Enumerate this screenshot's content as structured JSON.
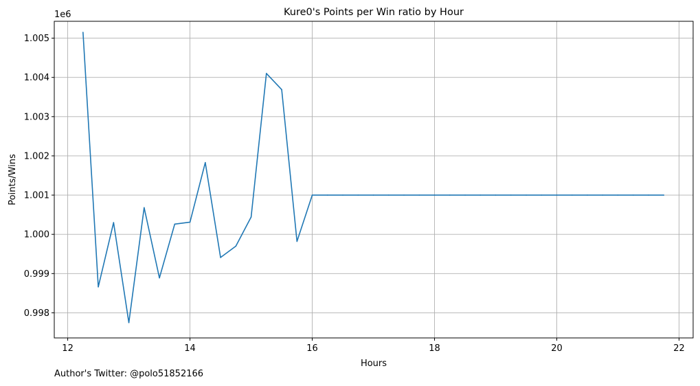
{
  "chart_data": {
    "type": "line",
    "title": "Kure0's Points per Win ratio by Hour",
    "xlabel": "Hours",
    "ylabel": "Points/Wins",
    "y_offset_label": "1e6",
    "xlim": [
      11.78,
      22.23
    ],
    "ylim": [
      0.99736,
      1.00543
    ],
    "x_ticks": [
      12,
      14,
      16,
      18,
      20,
      22
    ],
    "y_ticks": [
      0.998,
      0.999,
      1.0,
      1.001,
      1.002,
      1.003,
      1.004,
      1.005
    ],
    "x_tick_labels": [
      "12",
      "14",
      "16",
      "18",
      "20",
      "22"
    ],
    "y_tick_labels": [
      "0.998",
      "0.999",
      "1.000",
      "1.001",
      "1.002",
      "1.003",
      "1.004",
      "1.005"
    ],
    "grid": true,
    "legend": "none",
    "series": [
      {
        "color": "#1f77b4",
        "x": [
          12.25,
          12.5,
          12.75,
          13.0,
          13.25,
          13.5,
          13.75,
          14.0,
          14.25,
          14.5,
          14.75,
          15.0,
          15.25,
          15.5,
          15.75,
          16.0,
          16.25,
          16.5,
          16.75,
          17.0,
          17.25,
          17.5,
          17.75,
          18.0,
          18.25,
          18.5,
          18.75,
          19.0,
          19.25,
          19.5,
          19.75,
          20.0,
          20.25,
          20.5,
          20.75,
          21.0,
          21.25,
          21.5,
          21.75
        ],
        "y": [
          1.00515,
          0.99866,
          1.0003,
          0.99775,
          1.00068,
          0.99889,
          1.00026,
          1.00031,
          1.00183,
          0.99941,
          0.9997,
          1.00044,
          1.0041,
          1.00369,
          0.99982,
          1.001,
          1.001,
          1.001,
          1.001,
          1.001,
          1.001,
          1.001,
          1.001,
          1.001,
          1.001,
          1.001,
          1.001,
          1.001,
          1.001,
          1.001,
          1.001,
          1.001,
          1.001,
          1.001,
          1.001,
          1.001,
          1.001,
          1.001,
          1.001
        ]
      }
    ]
  },
  "footer": {
    "text": "Author's Twitter: @polo51852166"
  }
}
